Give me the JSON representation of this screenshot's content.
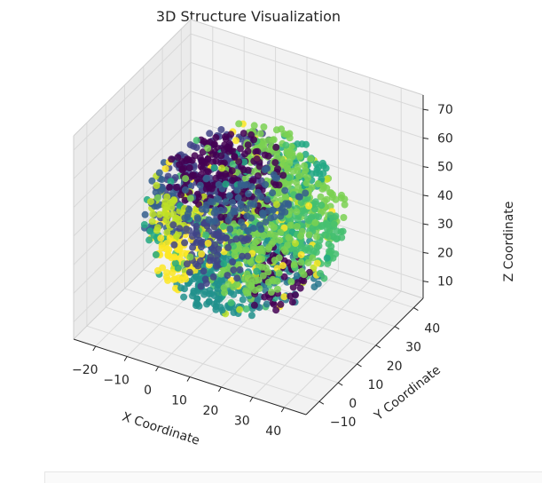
{
  "chart_data": {
    "type": "scatter",
    "projection": "3d",
    "title": "3D Structure Visualization",
    "xlabel": "X Coordinate",
    "ylabel": "Y Coordinate",
    "zlabel": "Z Coordinate",
    "x_ticks": [
      "−20",
      "−10",
      "0",
      "10",
      "20",
      "30",
      "40"
    ],
    "y_ticks": [
      "−10",
      "0",
      "10",
      "20",
      "30",
      "40"
    ],
    "z_ticks": [
      "10",
      "20",
      "30",
      "40",
      "50",
      "60",
      "70"
    ],
    "xlim": [
      -27,
      47
    ],
    "ylim": [
      -17,
      45
    ],
    "zlim": [
      4,
      75
    ],
    "grid": true,
    "colormap": "viridis",
    "cluster_center": [
      10,
      12,
      40
    ],
    "cluster_radius": 28,
    "points_approx": 2000
  },
  "colors": {
    "pane": "#f2f2f2",
    "pane_side": "#ebebeb",
    "grid": "#d9d9d9",
    "text": "#262626",
    "viridis": [
      "#440154",
      "#482475",
      "#414487",
      "#355f8d",
      "#2a788e",
      "#21918c",
      "#22a884",
      "#44bf70",
      "#7ad151",
      "#bddf26",
      "#fde725"
    ]
  }
}
